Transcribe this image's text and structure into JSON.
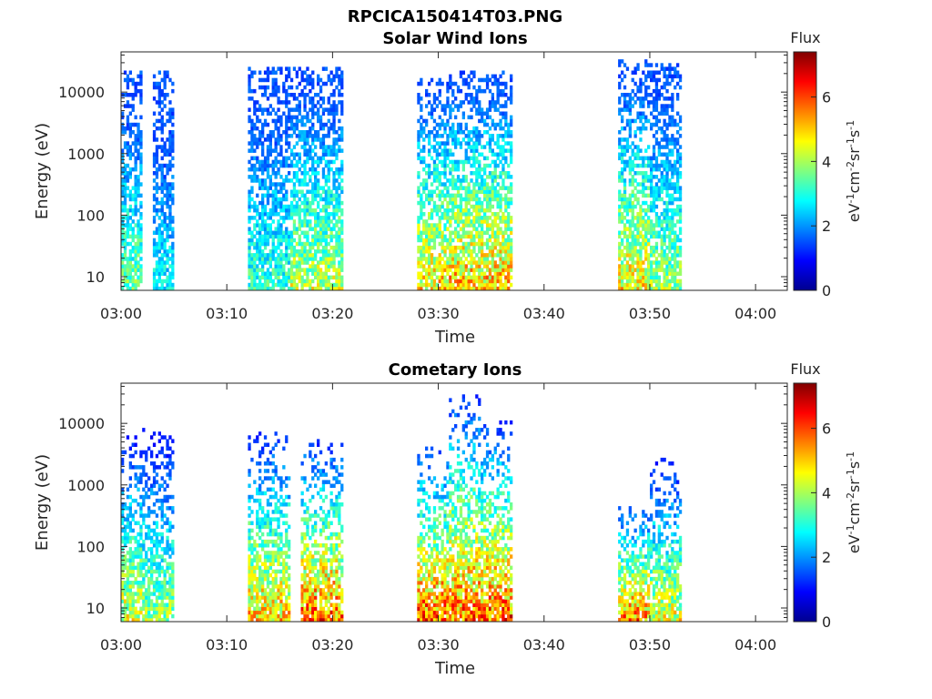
{
  "figure": {
    "title": "RPCICA150414T03.PNG"
  },
  "chart_data": [
    {
      "type": "heatmap",
      "title": "Solar Wind Ions",
      "xlabel": "Time",
      "ylabel": "Energy (eV)",
      "x_ticks": [
        "03:00",
        "03:10",
        "03:20",
        "03:30",
        "03:40",
        "03:50",
        "04:00"
      ],
      "x_range_minutes": [
        0,
        63
      ],
      "y_scale": "log",
      "y_ticks": [
        10,
        100,
        1000,
        10000
      ],
      "y_range": [
        6,
        45000
      ],
      "colorbar": {
        "title": "Flux",
        "label": "eV-1cm-2sr-1s-1",
        "ticks": [
          0,
          2,
          4,
          6
        ],
        "range": [
          0,
          7.4
        ],
        "colormap": "jet"
      },
      "active_intervals": [
        {
          "start": "03:00",
          "end": "03:02",
          "peak_flux": 4.5,
          "max_energy": 22000
        },
        {
          "start": "03:03",
          "end": "03:05",
          "peak_flux": 3.5,
          "max_energy": 20000
        },
        {
          "start": "03:12",
          "end": "03:16",
          "peak_flux": 4.0,
          "max_energy": 25000
        },
        {
          "start": "03:16",
          "end": "03:21",
          "peak_flux": 5.2,
          "max_energy": 23000
        },
        {
          "start": "03:28",
          "end": "03:31",
          "peak_flux": 6.0,
          "max_energy": 16000
        },
        {
          "start": "03:31",
          "end": "03:37",
          "peak_flux": 6.3,
          "max_energy": 20000
        },
        {
          "start": "03:47",
          "end": "03:50",
          "peak_flux": 5.8,
          "max_energy": 33000
        },
        {
          "start": "03:50",
          "end": "03:53",
          "peak_flux": 4.8,
          "max_energy": 28000
        }
      ]
    },
    {
      "type": "heatmap",
      "title": "Cometary Ions",
      "xlabel": "Time",
      "ylabel": "Energy (eV)",
      "x_ticks": [
        "03:00",
        "03:10",
        "03:20",
        "03:30",
        "03:40",
        "03:50",
        "04:00"
      ],
      "x_range_minutes": [
        0,
        63
      ],
      "y_scale": "log",
      "y_ticks": [
        10,
        100,
        1000,
        10000
      ],
      "y_range": [
        6,
        45000
      ],
      "colorbar": {
        "title": "Flux",
        "label": "eV-1cm-2sr-1s-1",
        "ticks": [
          0,
          2,
          4,
          6
        ],
        "range": [
          0,
          7.4
        ],
        "colormap": "jet"
      },
      "active_intervals": [
        {
          "start": "03:00",
          "end": "03:02",
          "peak_flux": 5.5,
          "max_energy": 6000
        },
        {
          "start": "03:02",
          "end": "03:05",
          "peak_flux": 4.8,
          "max_energy": 7500
        },
        {
          "start": "03:12",
          "end": "03:16",
          "peak_flux": 6.2,
          "max_energy": 7000
        },
        {
          "start": "03:17",
          "end": "03:21",
          "peak_flux": 7.0,
          "max_energy": 5000
        },
        {
          "start": "03:28",
          "end": "03:31",
          "peak_flux": 7.2,
          "max_energy": 4000
        },
        {
          "start": "03:31",
          "end": "03:34",
          "peak_flux": 7.0,
          "max_energy": 26000
        },
        {
          "start": "03:34",
          "end": "03:37",
          "peak_flux": 7.2,
          "max_energy": 10000
        },
        {
          "start": "03:47",
          "end": "03:50",
          "peak_flux": 6.8,
          "max_energy": 500
        },
        {
          "start": "03:50",
          "end": "03:53",
          "peak_flux": 5.5,
          "max_energy": 2500
        }
      ]
    }
  ]
}
